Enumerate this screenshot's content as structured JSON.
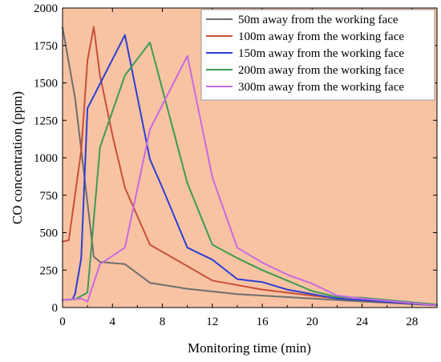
{
  "chart_data": {
    "type": "line",
    "xlabel": "Monitoring time (min)",
    "ylabel": "CO concentration (ppm)",
    "xlim": [
      0,
      30
    ],
    "ylim": [
      0,
      2000
    ],
    "xticks": [
      0,
      4,
      8,
      12,
      16,
      20,
      24,
      28
    ],
    "yticks": [
      0,
      250,
      500,
      750,
      1000,
      1250,
      1500,
      1750,
      2000
    ],
    "x_tick_labels": [
      "0",
      "4",
      "8",
      "12",
      "16",
      "20",
      "24",
      "28"
    ],
    "y_tick_labels": [
      "0",
      "250",
      "500",
      "750",
      "1000",
      "1250",
      "1500",
      "1750",
      "2000"
    ],
    "background_color": "#f8c3a3",
    "grid": false,
    "legend_position": "top-right",
    "series": [
      {
        "name": "50m away from the working face",
        "color": "#6e6e6e",
        "x": [
          0,
          1,
          2,
          2.5,
          3,
          5,
          7,
          10,
          14,
          20,
          24,
          30
        ],
        "y": [
          1870,
          1400,
          700,
          340,
          305,
          290,
          165,
          125,
          90,
          60,
          40,
          15
        ]
      },
      {
        "name": "100m away from the working face",
        "color": "#c8503a",
        "x": [
          0,
          0.5,
          1.5,
          2,
          2.5,
          3,
          4,
          5,
          7,
          12,
          16,
          22,
          30
        ],
        "y": [
          440,
          450,
          1050,
          1650,
          1875,
          1550,
          1150,
          800,
          420,
          180,
          120,
          60,
          15
        ]
      },
      {
        "name": "150m away from the working face",
        "color": "#2b3ed6",
        "x": [
          0,
          0.8,
          1,
          1.5,
          2,
          5,
          7,
          8,
          10,
          12,
          14,
          16,
          18,
          20,
          22,
          24,
          30
        ],
        "y": [
          50,
          55,
          90,
          330,
          1330,
          1820,
          990,
          800,
          400,
          320,
          190,
          170,
          120,
          90,
          60,
          50,
          15
        ]
      },
      {
        "name": "200m away from the working face",
        "color": "#3d9a55",
        "x": [
          0,
          1,
          2,
          3,
          5,
          7,
          10,
          12,
          14,
          16,
          18,
          20,
          22,
          24,
          30
        ],
        "y": [
          50,
          55,
          100,
          1070,
          1550,
          1770,
          830,
          420,
          330,
          250,
          180,
          110,
          70,
          65,
          20
        ]
      },
      {
        "name": "300m away from the working face",
        "color": "#c86ae0",
        "x": [
          0,
          1.5,
          2,
          3,
          5,
          7,
          10,
          12,
          14,
          16,
          18,
          20,
          22,
          24,
          30
        ],
        "y": [
          50,
          60,
          40,
          290,
          400,
          1190,
          1680,
          870,
          400,
          300,
          220,
          160,
          80,
          60,
          15
        ]
      }
    ]
  }
}
